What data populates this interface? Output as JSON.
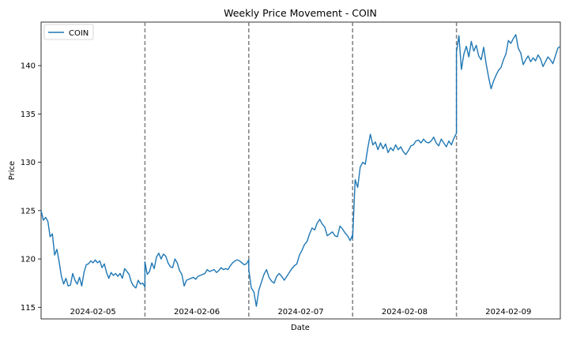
{
  "chart_data": {
    "type": "line",
    "title": "Weekly Price Movement - COIN",
    "xlabel": "Date",
    "ylabel": "Price",
    "ylim": [
      113.8,
      144.5
    ],
    "yticks": [
      115,
      120,
      125,
      130,
      135,
      140
    ],
    "grid": false,
    "legend_position": "top-left",
    "colors": {
      "line": "#1f77b4",
      "divider": "#7f7f7f"
    },
    "day_labels": [
      "2024-02-05",
      "2024-02-06",
      "2024-02-07",
      "2024-02-08",
      "2024-02-09"
    ],
    "series": [
      {
        "name": "COIN",
        "days": [
          [
            125.0,
            124.0,
            124.3,
            123.9,
            122.3,
            122.6,
            120.4,
            121.0,
            119.7,
            118.2,
            117.4,
            118.0,
            117.2,
            117.3,
            118.5,
            117.8,
            117.4,
            118.1,
            117.2,
            118.6,
            119.4,
            119.5,
            119.8,
            119.6,
            119.9,
            119.6,
            119.8,
            119.1,
            119.5,
            118.6,
            118.0,
            118.6,
            118.3,
            118.5,
            118.2,
            118.5,
            118.0,
            119.0,
            118.7,
            118.4,
            117.6,
            117.2,
            117.0,
            117.8,
            117.4,
            117.5,
            117.1
          ],
          [
            119.7,
            118.4,
            118.7,
            119.6,
            119.0,
            120.2,
            120.6,
            120.0,
            120.5,
            120.3,
            119.6,
            119.2,
            119.1,
            120.0,
            119.6,
            118.8,
            118.4,
            117.2,
            117.8,
            117.9,
            118.0,
            118.1,
            117.9,
            118.2,
            118.3,
            118.4,
            118.5,
            118.9,
            118.7,
            118.8,
            118.9,
            118.6,
            118.8,
            119.1,
            118.9,
            119.0,
            118.9,
            119.3,
            119.6,
            119.8,
            119.9,
            119.8,
            119.6,
            119.4,
            119.5,
            119.9
          ],
          [
            118.9,
            117.0,
            116.6,
            115.1,
            116.8,
            117.6,
            118.4,
            118.9,
            118.1,
            117.7,
            117.5,
            118.2,
            118.5,
            118.2,
            117.8,
            118.2,
            118.6,
            119.0,
            119.3,
            119.5,
            120.4,
            120.9,
            121.5,
            121.8,
            122.6,
            123.2,
            123.0,
            123.7,
            124.1,
            123.6,
            123.3,
            122.4,
            122.6,
            122.8,
            122.4,
            122.3,
            123.4,
            123.1,
            122.7,
            122.4,
            121.9,
            122.5
          ],
          [
            122.1,
            128.2,
            127.4,
            129.5,
            130.0,
            129.8,
            131.5,
            132.9,
            131.8,
            132.1,
            131.3,
            132.0,
            131.4,
            131.9,
            131.0,
            131.5,
            131.2,
            131.8,
            131.3,
            131.6,
            131.1,
            130.8,
            131.2,
            131.7,
            131.8,
            132.2,
            132.3,
            132.0,
            132.4,
            132.1,
            132.0,
            132.2,
            132.6,
            132.0,
            131.7,
            132.4,
            132.0,
            131.6,
            132.2,
            131.8,
            132.5,
            133.0
          ],
          [
            141.4,
            143.1,
            139.6,
            141.2,
            142.0,
            140.9,
            142.5,
            141.5,
            142.1,
            141.0,
            140.6,
            141.9,
            140.2,
            138.8,
            137.6,
            138.4,
            139.0,
            139.5,
            139.8,
            140.6,
            141.2,
            142.6,
            142.3,
            142.8,
            143.2,
            141.8,
            141.3,
            140.1,
            140.6,
            141.0,
            140.4,
            140.8,
            140.5,
            141.1,
            140.7,
            139.9,
            140.4,
            140.9,
            140.6,
            140.2,
            141.0,
            141.8,
            142.0
          ]
        ]
      }
    ]
  }
}
